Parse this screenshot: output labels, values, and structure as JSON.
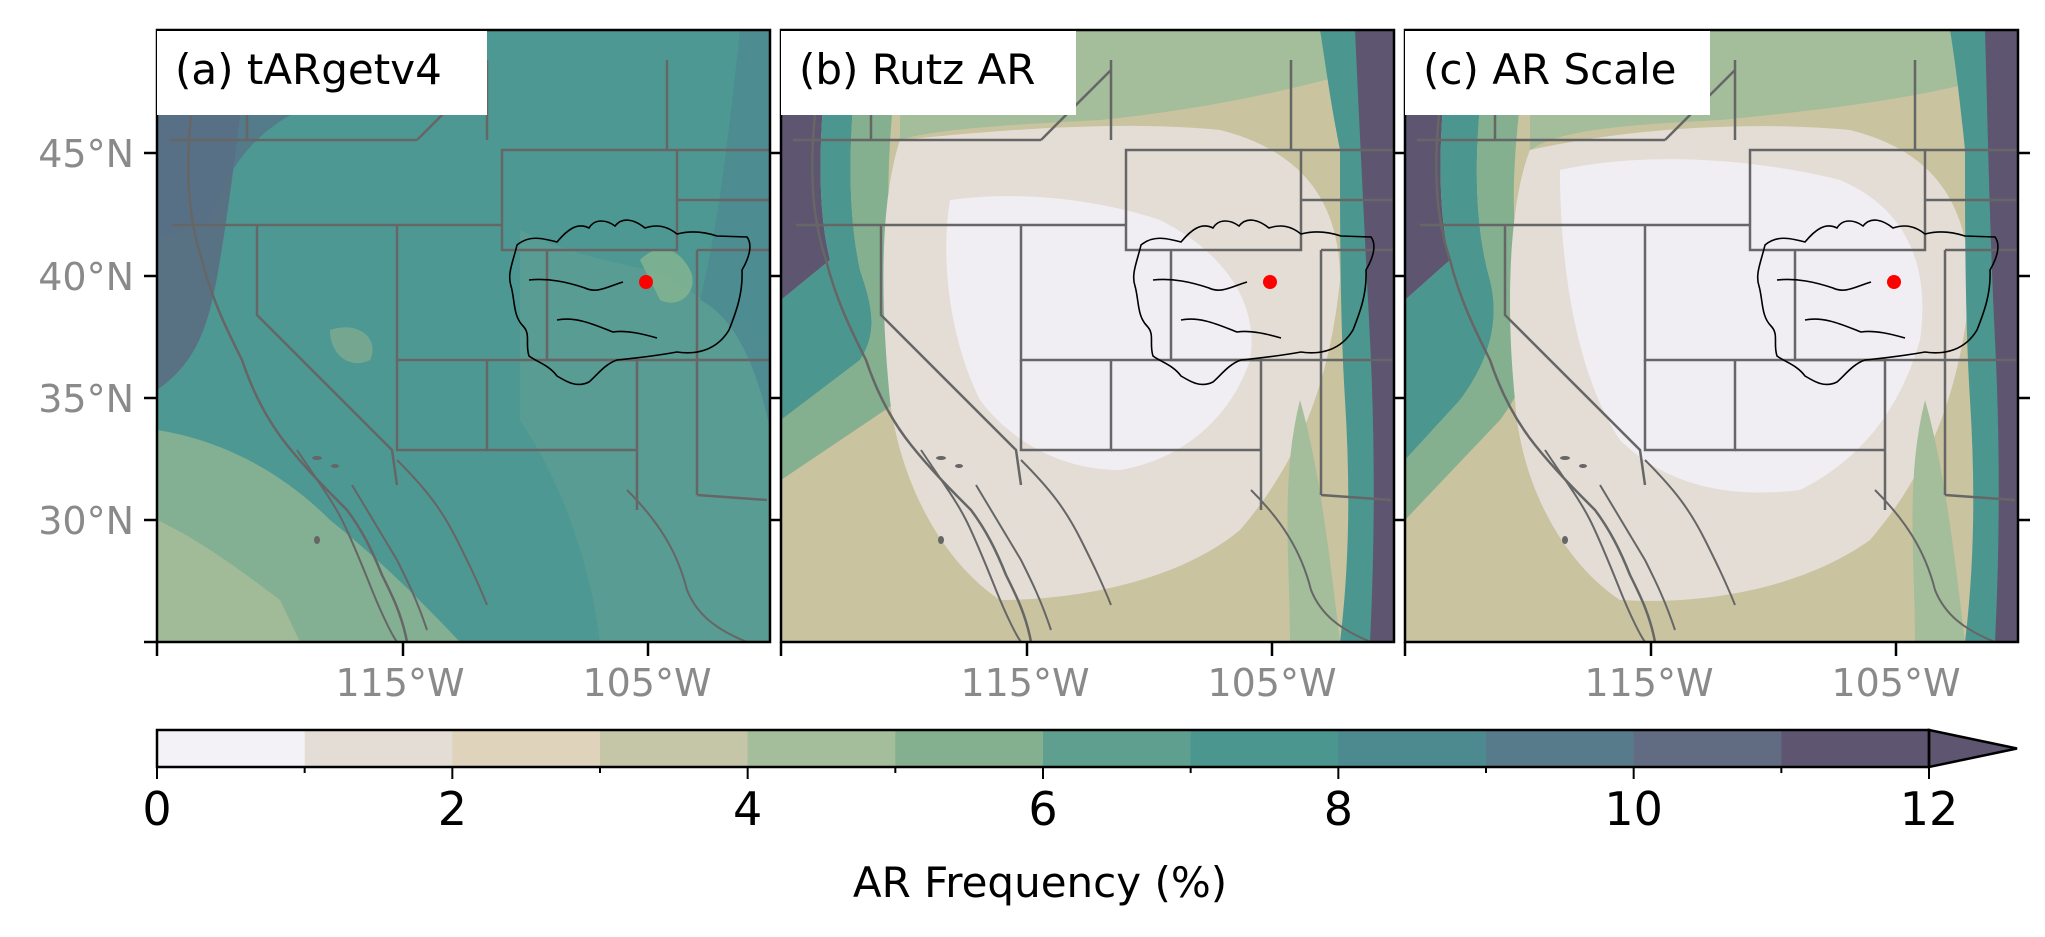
{
  "panels": [
    {
      "label": "(a) tARgetv4",
      "base_color": "#4c9690",
      "id": "panel-a"
    },
    {
      "label": "(b) Rutz AR",
      "base_color": "#c9c09e",
      "id": "panel-b"
    },
    {
      "label": "(c) AR Scale",
      "base_color": "#c9c09e",
      "id": "panel-c"
    }
  ],
  "lat_ticks": [
    "45°N",
    "40°N",
    "35°N",
    "30°N"
  ],
  "lon_ticks": [
    "115°W",
    "105°W"
  ],
  "marker_color": "#ff0000",
  "colorbar": {
    "label": "AR Frequency (%)",
    "ticks": [
      "0",
      "2",
      "4",
      "6",
      "8",
      "10",
      "12"
    ],
    "levels": [
      0,
      1,
      2,
      3,
      4,
      5,
      6,
      7,
      8,
      9,
      10,
      11,
      12
    ],
    "extend": "max",
    "colors": [
      "#f3f3f7",
      "#e3ddd6",
      "#e0d3bc",
      "#c5c5a8",
      "#a4bd9a",
      "#84b08f",
      "#5f9f8f",
      "#4c9690",
      "#4d8a8f",
      "#577b8b",
      "#616b82",
      "#5e5670"
    ]
  }
}
